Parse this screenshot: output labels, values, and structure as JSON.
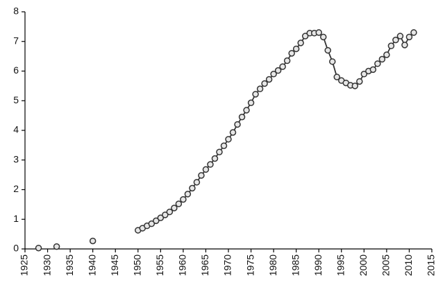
{
  "chart_data": {
    "type": "line",
    "x": [
      1928,
      1932,
      1940,
      1950,
      1951,
      1952,
      1953,
      1954,
      1955,
      1956,
      1957,
      1958,
      1959,
      1960,
      1961,
      1962,
      1963,
      1964,
      1965,
      1966,
      1967,
      1968,
      1969,
      1970,
      1971,
      1972,
      1973,
      1974,
      1975,
      1976,
      1977,
      1978,
      1979,
      1980,
      1981,
      1982,
      1983,
      1984,
      1985,
      1986,
      1987,
      1988,
      1989,
      1990,
      1991,
      1992,
      1993,
      1994,
      1995,
      1996,
      1997,
      1998,
      1999,
      2000,
      2001,
      2002,
      2003,
      2004,
      2005,
      2006,
      2007,
      2008,
      2009,
      2010,
      2011
    ],
    "values": [
      0.03,
      0.08,
      0.27,
      0.63,
      0.7,
      0.78,
      0.85,
      0.95,
      1.05,
      1.15,
      1.25,
      1.38,
      1.52,
      1.67,
      1.85,
      2.05,
      2.25,
      2.48,
      2.68,
      2.85,
      3.05,
      3.27,
      3.48,
      3.7,
      3.93,
      4.2,
      4.45,
      4.68,
      4.93,
      5.22,
      5.4,
      5.58,
      5.72,
      5.9,
      6.02,
      6.15,
      6.35,
      6.6,
      6.75,
      6.95,
      7.18,
      7.28,
      7.28,
      7.3,
      7.15,
      6.7,
      6.32,
      5.8,
      5.68,
      5.6,
      5.52,
      5.5,
      5.65,
      5.9,
      6.0,
      6.05,
      6.25,
      6.4,
      6.55,
      6.85,
      7.05,
      7.18,
      6.88,
      7.15,
      7.3
    ],
    "color": "#333333",
    "marker_fill": "#e6e6e6",
    "xlim": [
      1925,
      2015
    ],
    "xticks": [
      1925,
      1930,
      1935,
      1940,
      1945,
      1950,
      1955,
      1960,
      1965,
      1970,
      1975,
      1980,
      1985,
      1990,
      1995,
      2000,
      2005,
      2010,
      2015
    ],
    "ylim": [
      0,
      8
    ],
    "yticks": [
      0,
      1,
      2,
      3,
      4,
      5,
      6,
      7,
      8
    ],
    "grid": false
  }
}
